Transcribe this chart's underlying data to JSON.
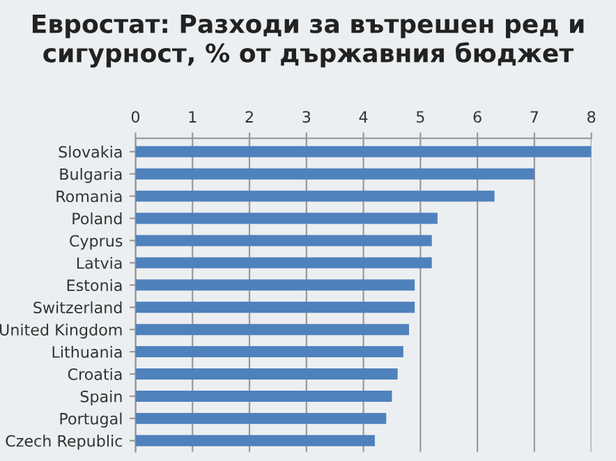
{
  "chart_data": {
    "type": "bar",
    "orientation": "horizontal",
    "title": "Евростат: Разходи за вътрешен ред и сигурност, % от държавния бюджет",
    "categories": [
      "Slovakia",
      "Bulgaria",
      "Romania",
      "Poland",
      "Cyprus",
      "Latvia",
      "Estonia",
      "Switzerland",
      "United Kingdom",
      "Lithuania",
      "Croatia",
      "Spain",
      "Portugal",
      "Czech Republic"
    ],
    "values": [
      8.0,
      7.0,
      6.3,
      5.3,
      5.2,
      5.2,
      4.9,
      4.9,
      4.8,
      4.7,
      4.6,
      4.5,
      4.4,
      4.2
    ],
    "color": "#4f81bd",
    "xlim": [
      0,
      8
    ],
    "xticks": [
      0,
      1,
      2,
      3,
      4,
      5,
      6,
      7,
      8
    ],
    "grid": "x"
  }
}
